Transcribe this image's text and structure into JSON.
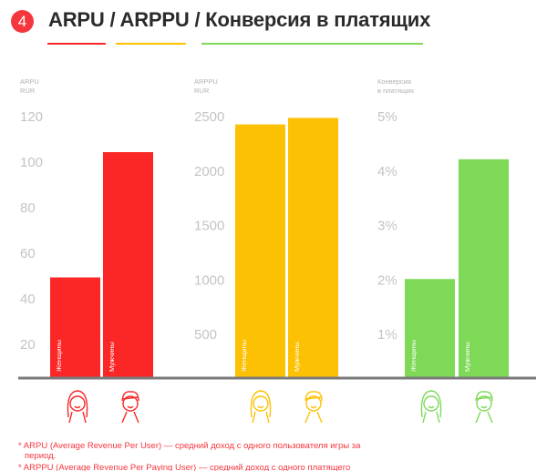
{
  "header": {
    "number": "4",
    "title_parts": [
      "ARPU",
      "/",
      "ARPPU",
      "/",
      "Конверсия в платящих"
    ]
  },
  "colors": {
    "arpu": "#fb2727",
    "arppu": "#fdc103",
    "conversion": "#7ed957",
    "badge": "#f5363e",
    "axis": "#7a7a7a",
    "tick": "#c4c4c4",
    "note": "#f5363e"
  },
  "icons": [
    "female-face-icon",
    "male-face-icon"
  ],
  "chart_data": [
    {
      "type": "bar",
      "ylabel": [
        "ARPU",
        "RUR"
      ],
      "categories": [
        "Женщины",
        "Мужчины"
      ],
      "values": [
        49,
        104
      ],
      "ylim": [
        0,
        120
      ],
      "ticks": [
        20,
        40,
        60,
        80,
        100,
        120
      ],
      "tick_labels": [
        "20",
        "40",
        "60",
        "80",
        "100",
        "120"
      ],
      "color_key": "arpu"
    },
    {
      "type": "bar",
      "ylabel": [
        "ARPPU",
        "RUR"
      ],
      "categories": [
        "Женщины",
        "Мужчины"
      ],
      "values": [
        2420,
        2480
      ],
      "ylim": [
        0,
        2500
      ],
      "ticks": [
        500,
        1000,
        1500,
        2000,
        2500
      ],
      "tick_labels": [
        "500",
        "1000",
        "1500",
        "2000",
        "2500"
      ],
      "color_key": "arppu"
    },
    {
      "type": "bar",
      "ylabel": [
        "Конверсия",
        "в платящих"
      ],
      "categories": [
        "Женщины",
        "Мужчины"
      ],
      "values": [
        2.0,
        4.2
      ],
      "ylim": [
        0,
        5
      ],
      "ticks": [
        1,
        2,
        3,
        4,
        5
      ],
      "tick_labels": [
        "1%",
        "2%",
        "3%",
        "4%",
        "5%"
      ],
      "color_key": "conversion"
    }
  ],
  "footnotes": [
    "* ARPU (Average Revenue Per User) — средний доход с одного пользователя игры за период.",
    "* ARPPU (Average Revenue Per Paying User) — средний доход с одного платящего пользователя игры за период."
  ]
}
